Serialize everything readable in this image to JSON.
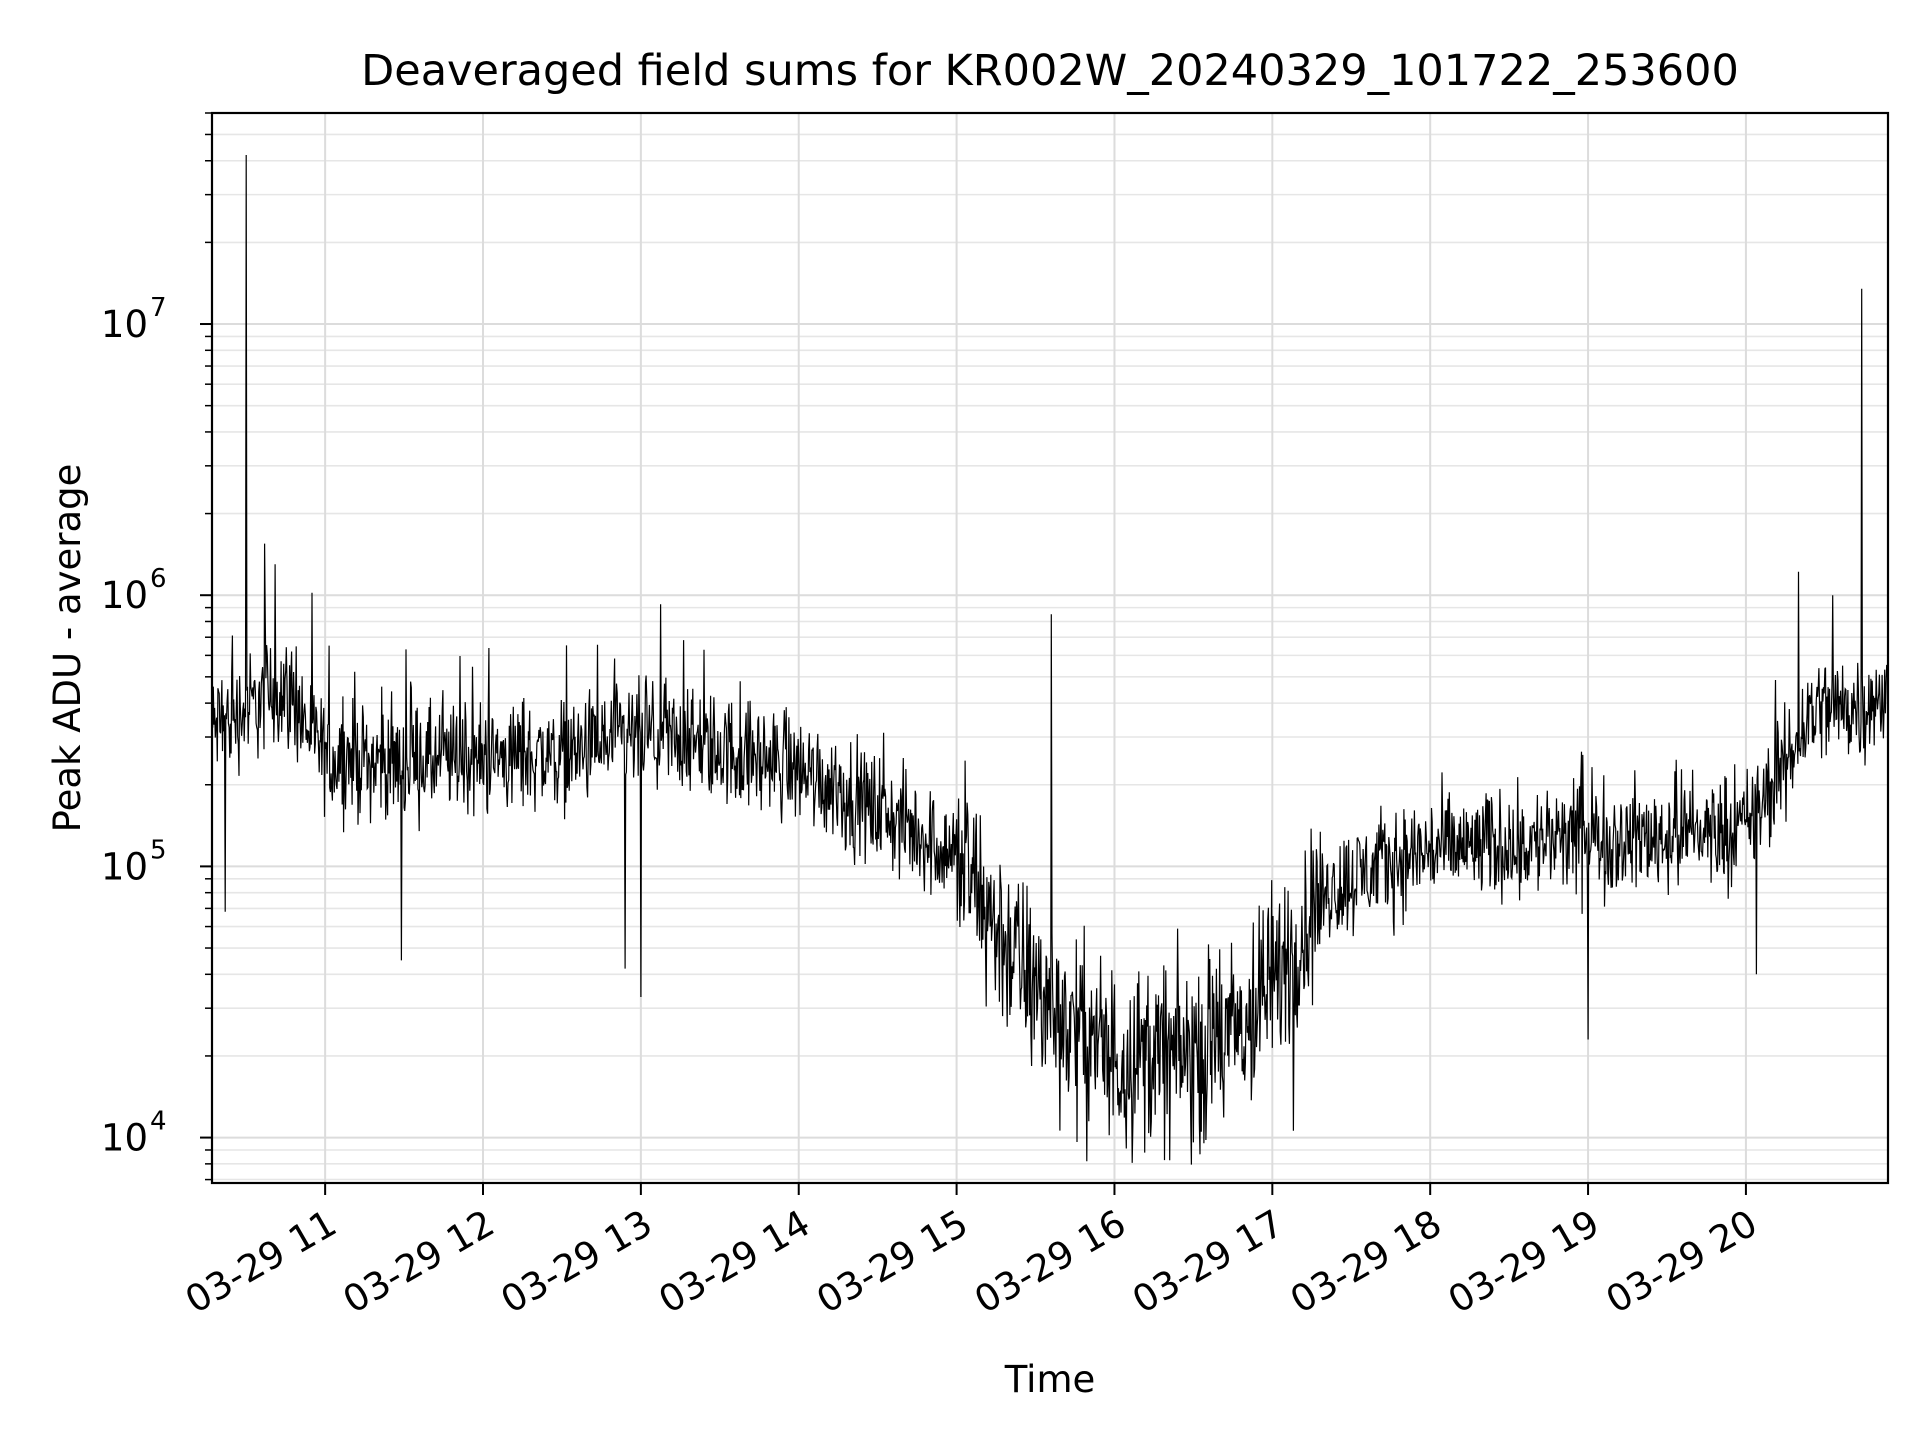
{
  "chart_data": {
    "type": "line",
    "title": "Deaveraged field sums for KR002W_20240329_101722_253600",
    "xlabel": "Time",
    "ylabel": "Peak ADU - average",
    "yscale": "log",
    "ylim": [
      6800,
      60000000
    ],
    "xlim": [
      "03-29 10:17",
      "03-29 20:54"
    ],
    "grid": true,
    "x_ticks": [
      {
        "t": "03-29 11:00",
        "label": "03-29 11"
      },
      {
        "t": "03-29 12:00",
        "label": "03-29 12"
      },
      {
        "t": "03-29 13:00",
        "label": "03-29 13"
      },
      {
        "t": "03-29 14:00",
        "label": "03-29 14"
      },
      {
        "t": "03-29 15:00",
        "label": "03-29 15"
      },
      {
        "t": "03-29 16:00",
        "label": "03-29 16"
      },
      {
        "t": "03-29 17:00",
        "label": "03-29 17"
      },
      {
        "t": "03-29 18:00",
        "label": "03-29 18"
      },
      {
        "t": "03-29 19:00",
        "label": "03-29 19"
      },
      {
        "t": "03-29 20:00",
        "label": "03-29 20"
      }
    ],
    "y_ticks": [
      {
        "value": 10000,
        "base": "10",
        "exp": "4"
      },
      {
        "value": 100000,
        "base": "10",
        "exp": "5"
      },
      {
        "value": 1000000,
        "base": "10",
        "exp": "6"
      },
      {
        "value": 10000000,
        "base": "10",
        "exp": "7"
      }
    ],
    "series": [
      {
        "color": "#000000",
        "baseline": [
          [
            "03-29 10:17",
            320000
          ],
          [
            "03-29 10:30",
            380000
          ],
          [
            "03-29 10:45",
            450000
          ],
          [
            "03-29 11:00",
            250000
          ],
          [
            "03-29 11:30",
            240000
          ],
          [
            "03-29 12:00",
            250000
          ],
          [
            "03-29 12:30",
            260000
          ],
          [
            "03-29 13:00",
            300000
          ],
          [
            "03-29 13:30",
            270000
          ],
          [
            "03-29 14:00",
            230000
          ],
          [
            "03-29 14:30",
            160000
          ],
          [
            "03-29 15:00",
            110000
          ],
          [
            "03-29 15:15",
            60000
          ],
          [
            "03-29 15:30",
            35000
          ],
          [
            "03-29 15:45",
            25000
          ],
          [
            "03-29 16:00",
            20000
          ],
          [
            "03-29 16:30",
            20000
          ],
          [
            "03-29 16:50",
            25000
          ],
          [
            "03-29 17:05",
            45000
          ],
          [
            "03-29 17:20",
            80000
          ],
          [
            "03-29 17:40",
            100000
          ],
          [
            "03-29 18:00",
            115000
          ],
          [
            "03-29 18:30",
            120000
          ],
          [
            "03-29 19:00",
            125000
          ],
          [
            "03-29 19:30",
            130000
          ],
          [
            "03-29 20:00",
            140000
          ],
          [
            "03-29 20:15",
            230000
          ],
          [
            "03-29 20:25",
            380000
          ],
          [
            "03-29 20:54",
            400000
          ]
        ],
        "spikes": [
          [
            "03-29 10:30",
            42000000
          ],
          [
            "03-29 10:37",
            1550000
          ],
          [
            "03-29 10:41",
            1300000
          ],
          [
            "03-29 15:36",
            850000
          ],
          [
            "03-29 20:20",
            1220000
          ],
          [
            "03-29 20:33",
            1000000
          ],
          [
            "03-29 20:44",
            13500000
          ]
        ],
        "dips": [
          [
            "03-29 10:22",
            68000
          ],
          [
            "03-29 11:29",
            45000
          ],
          [
            "03-29 12:54",
            42000
          ],
          [
            "03-29 13:00",
            33000
          ],
          [
            "03-29 15:58",
            10200
          ],
          [
            "03-29 16:33",
            10500
          ],
          [
            "03-29 17:08",
            10600
          ],
          [
            "03-29 19:00",
            23000
          ],
          [
            "03-29 20:04",
            40000
          ]
        ]
      }
    ]
  }
}
